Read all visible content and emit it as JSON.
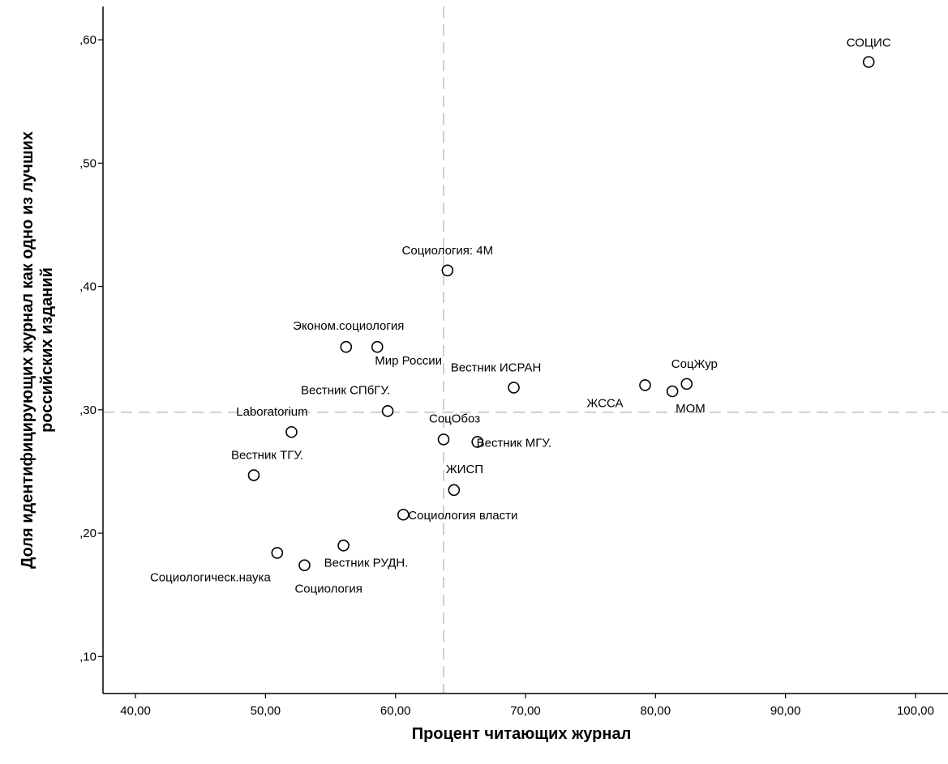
{
  "chart_data": {
    "type": "scatter",
    "xlabel": "Процент читающих журнал",
    "ylabel_line1": "Доля идентифицирующих журнал как одно из лучших",
    "ylabel_line2": "российских изданий",
    "xlim": [
      37.5,
      102.5
    ],
    "ylim": [
      0.07,
      0.627
    ],
    "x_ticks": [
      40,
      50,
      60,
      70,
      80,
      90,
      100
    ],
    "x_tick_labels": [
      "40,00",
      "50,00",
      "60,00",
      "70,00",
      "80,00",
      "90,00",
      "100,00"
    ],
    "y_ticks": [
      0.1,
      0.2,
      0.3,
      0.4,
      0.5,
      0.6
    ],
    "y_tick_labels": [
      ",10",
      ",20",
      ",30",
      ",40",
      ",50",
      ",60"
    ],
    "reference_lines": {
      "x": 63.7,
      "y": 0.298
    },
    "grid": false,
    "legend": "none",
    "marker_color": "#000000",
    "reference_line_color": "#cfcfcf",
    "points": [
      {
        "x": 96.4,
        "y": 0.582,
        "label": "СОЦИС"
      },
      {
        "x": 64.0,
        "y": 0.413,
        "label": "Социология: 4М"
      },
      {
        "x": 56.2,
        "y": 0.351,
        "label": "Эконом.социология"
      },
      {
        "x": 58.6,
        "y": 0.351,
        "label": "Мир России"
      },
      {
        "x": 69.1,
        "y": 0.318,
        "label": "Вестник ИСРАН"
      },
      {
        "x": 82.4,
        "y": 0.321,
        "label": "СоцЖур"
      },
      {
        "x": 79.2,
        "y": 0.32,
        "label": "ЖССА"
      },
      {
        "x": 81.3,
        "y": 0.315,
        "label": "МОМ"
      },
      {
        "x": 59.4,
        "y": 0.299,
        "label": "Вестник СПбГУ."
      },
      {
        "x": 52.0,
        "y": 0.282,
        "label": "Laboratorium"
      },
      {
        "x": 63.7,
        "y": 0.276,
        "label": "СоцОбоз"
      },
      {
        "x": 66.3,
        "y": 0.274,
        "label": "Вестник МГУ."
      },
      {
        "x": 49.1,
        "y": 0.247,
        "label": "Вестник ТГУ."
      },
      {
        "x": 64.5,
        "y": 0.235,
        "label": "ЖИСП"
      },
      {
        "x": 60.6,
        "y": 0.215,
        "label": "Социология власти"
      },
      {
        "x": 56.0,
        "y": 0.19,
        "label": "Вестник РУДН."
      },
      {
        "x": 50.9,
        "y": 0.184,
        "label": "Социологическ.наука"
      },
      {
        "x": 53.0,
        "y": 0.174,
        "label": "Социология"
      }
    ]
  }
}
